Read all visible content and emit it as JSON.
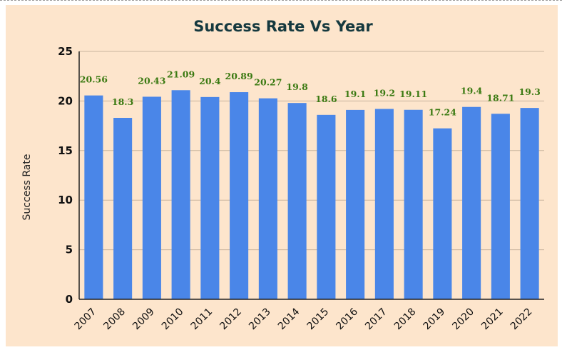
{
  "chart_data": {
    "type": "bar",
    "title": "Success Rate Vs Year",
    "xlabel": "",
    "ylabel": "Success Rate",
    "ylim": [
      0,
      25
    ],
    "yticks": [
      "0",
      "5",
      "10",
      "15",
      "20",
      "25"
    ],
    "grid": true,
    "categories": [
      "2007",
      "2008",
      "2009",
      "2010",
      "2011",
      "2012",
      "2013",
      "2014",
      "2015",
      "2016",
      "2017",
      "2018",
      "2019",
      "2020",
      "2021",
      "2022"
    ],
    "values": [
      20.56,
      18.3,
      20.43,
      21.09,
      20.4,
      20.89,
      20.27,
      19.8,
      18.6,
      19.1,
      19.2,
      19.11,
      17.24,
      19.4,
      18.71,
      19.3
    ],
    "data_labels": [
      "20.56",
      "18.3",
      "20.43",
      "21.09",
      "20.4",
      "20.89",
      "20.27",
      "19.8",
      "18.6",
      "19.1",
      "19.2",
      "19.11",
      "17.24",
      "19.4",
      "18.71",
      "19.3"
    ],
    "colors": {
      "bar": "#4a86e8",
      "data_label": "#3b7a12",
      "background": "#fde5cc",
      "title": "#15393f",
      "grid": "#c9b59e"
    }
  }
}
